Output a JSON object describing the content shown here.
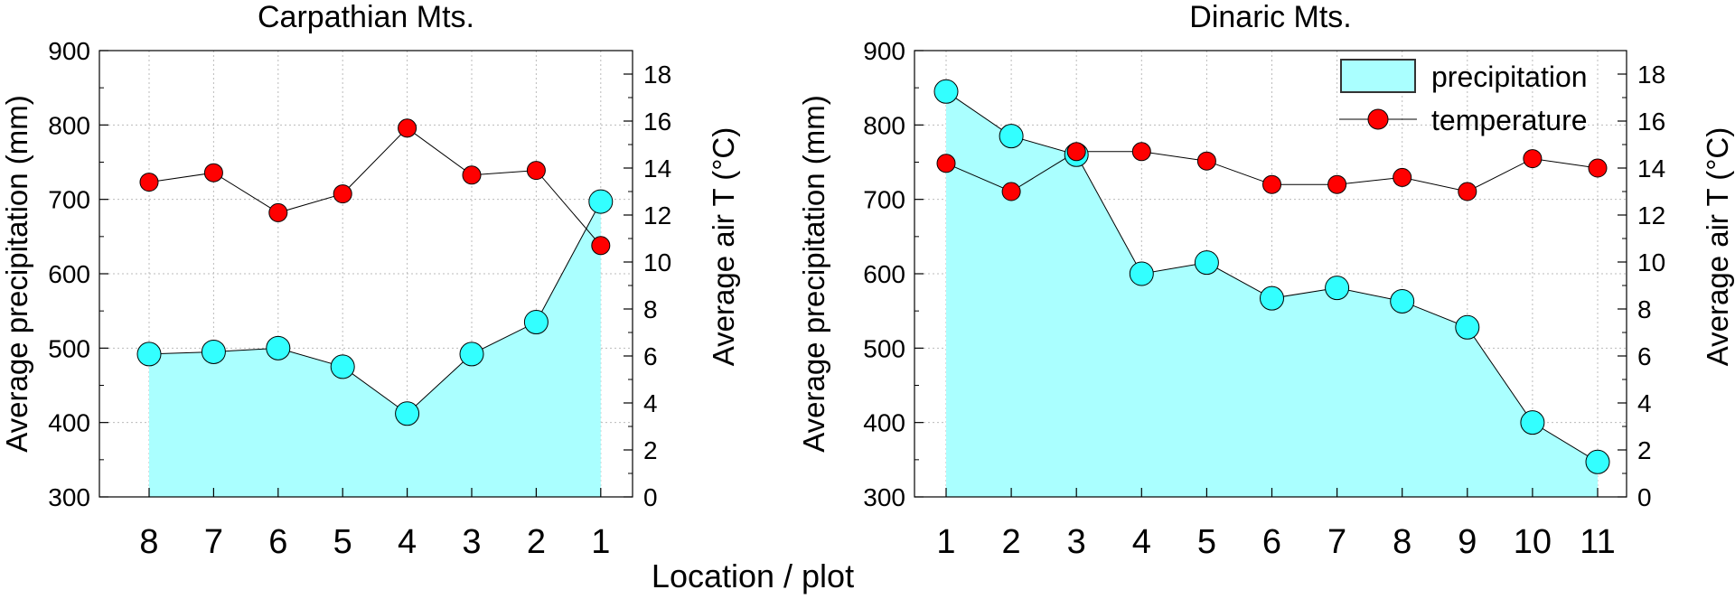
{
  "shared_xlabel": "Location / plot",
  "legend": {
    "precipitation": "precipitation",
    "temperature": "temperature"
  },
  "colors": {
    "precip_fill": "#aaffff",
    "precip_marker": "#33ffff",
    "temp_marker": "#ff0000",
    "grid": "#bbbbbb"
  },
  "chart_data": [
    {
      "type": "area",
      "title": "Carpathian Mts.",
      "ylabel": "Average precipitation (mm)",
      "y2label": "Average air T (°C)",
      "categories": [
        "8",
        "7",
        "6",
        "5",
        "4",
        "3",
        "2",
        "1"
      ],
      "ylim": [
        300,
        900
      ],
      "y2lim": [
        0,
        19
      ],
      "yticks": [
        300,
        400,
        500,
        600,
        700,
        800,
        900
      ],
      "y2ticks": [
        0,
        2,
        4,
        6,
        8,
        10,
        12,
        14,
        16,
        18
      ],
      "grid": true,
      "legend": false,
      "series": [
        {
          "name": "precipitation",
          "axis": "left",
          "values": [
            492,
            495,
            500,
            475,
            412,
            492,
            535,
            697
          ]
        },
        {
          "name": "temperature",
          "axis": "right",
          "values": [
            13.4,
            13.8,
            12.1,
            12.9,
            15.7,
            13.7,
            13.9,
            10.7
          ]
        }
      ]
    },
    {
      "type": "area",
      "title": "Dinaric Mts.",
      "ylabel": "Average precipitation (mm)",
      "y2label": "Average air T (°C)",
      "categories": [
        "1",
        "2",
        "3",
        "4",
        "5",
        "6",
        "7",
        "8",
        "9",
        "10",
        "11"
      ],
      "ylim": [
        300,
        900
      ],
      "y2lim": [
        0,
        19
      ],
      "yticks": [
        300,
        400,
        500,
        600,
        700,
        800,
        900
      ],
      "y2ticks": [
        0,
        2,
        4,
        6,
        8,
        10,
        12,
        14,
        16,
        18
      ],
      "grid": true,
      "legend": "top-right",
      "series": [
        {
          "name": "precipitation",
          "axis": "left",
          "values": [
            845,
            785,
            760,
            600,
            615,
            567,
            581,
            563,
            528,
            400,
            347
          ]
        },
        {
          "name": "temperature",
          "axis": "right",
          "values": [
            14.2,
            13.0,
            14.7,
            14.7,
            14.3,
            13.3,
            13.3,
            13.6,
            13.0,
            14.4,
            14.0
          ]
        }
      ]
    }
  ]
}
